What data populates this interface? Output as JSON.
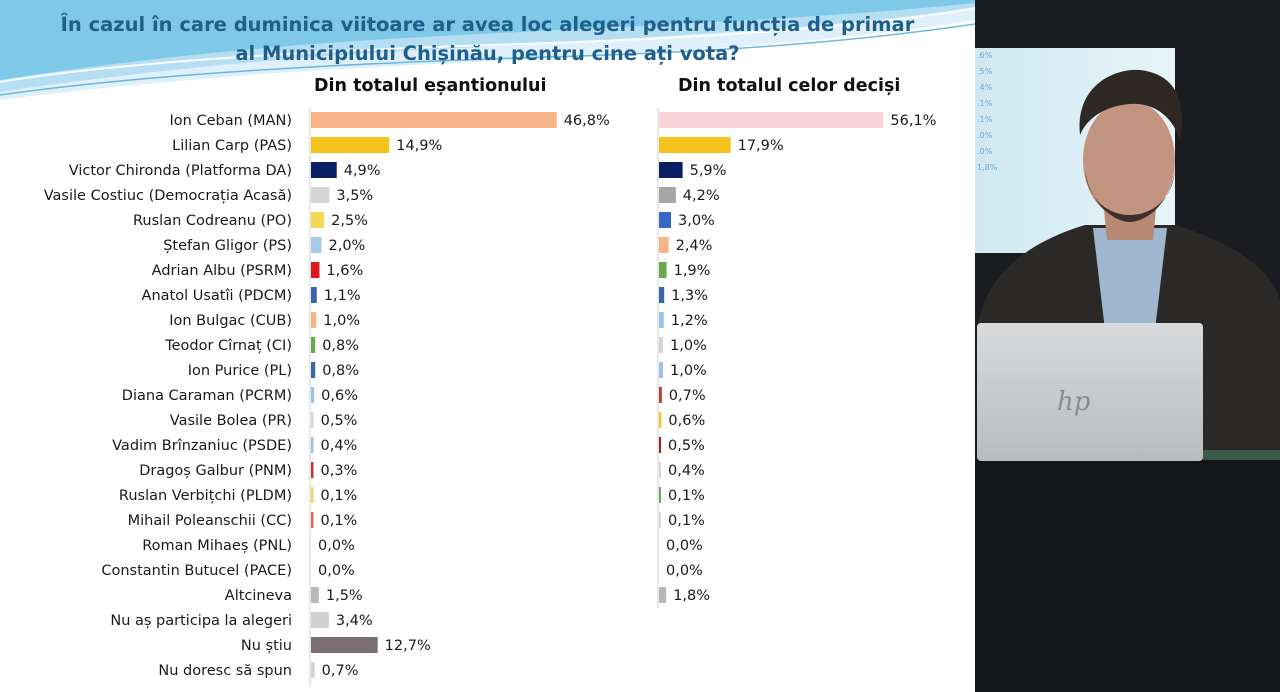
{
  "title": {
    "line1": "În cazul în care duminica viitoare ar avea loc alegeri pentru funcția de primar",
    "line2": "al Municipiului Chișinău, pentru cine ați vota?"
  },
  "chart_data": [
    {
      "type": "bar",
      "orientation": "horizontal",
      "title": "Din totalul eșantionului",
      "categories": [
        "Ion Ceban (MAN)",
        "Lilian Carp (PAS)",
        "Victor Chironda (Platforma DA)",
        "Vasile Costiuc (Democrația Acasă)",
        "Ruslan Codreanu (PO)",
        "Ștefan Gligor  (PS)",
        "Adrian Albu (PSRM)",
        "Anatol Usatîi (PDCM)",
        "Ion Bulgac (CUB)",
        "Teodor Cîrnaț (CI)",
        "Ion Purice (PL)",
        "Diana Caraman (PCRM)",
        "Vasile Bolea (PR)",
        "Vadim Brînzaniuc (PSDE)",
        "Dragoș Galbur (PNM)",
        "Ruslan Verbițchi (PLDM)",
        "Mihail Poleanschii (CC)",
        "Roman Mihaeș (PNL)",
        "Constantin Butucel  (PACE)",
        "Altcineva",
        "Nu aș participa la alegeri",
        "Nu știu",
        "Nu doresc să spun"
      ],
      "values": [
        46.8,
        14.9,
        4.9,
        3.5,
        2.5,
        2.0,
        1.6,
        1.1,
        1.0,
        0.8,
        0.8,
        0.6,
        0.5,
        0.4,
        0.3,
        0.1,
        0.1,
        0.0,
        0.0,
        1.5,
        3.4,
        12.7,
        0.7
      ],
      "labels": [
        "46,8%",
        "14,9%",
        "4,9%",
        "3,5%",
        "2,5%",
        "2,0%",
        "1,6%",
        "1,1%",
        "1,0%",
        "0,8%",
        "0,8%",
        "0,6%",
        "0,5%",
        "0,4%",
        "0,3%",
        "0,1%",
        "0,1%",
        "0,0%",
        "0,0%",
        "1,5%",
        "3,4%",
        "12,7%",
        "0,7%"
      ],
      "colors": [
        "#f7b486",
        "#f5c31b",
        "#0b1d63",
        "#d5d5d5",
        "#f6d859",
        "#a9c9ec",
        "#e0161b",
        "#3a66b0",
        "#f5b48a",
        "#6aa84f",
        "#3a66b0",
        "#9cc3e6",
        "#d8d8d8",
        "#9cc3e6",
        "#c0392b",
        "#f2d35b",
        "#e06666",
        "#dddddd",
        "#dddddd",
        "#b8b8b8",
        "#d2d2d2",
        "#7b6f72",
        "#d2d2d2"
      ],
      "unit": "%"
    },
    {
      "type": "bar",
      "orientation": "horizontal",
      "title": "Din totalul celor deciși",
      "values": [
        56.1,
        17.9,
        5.9,
        4.2,
        3.0,
        2.4,
        1.9,
        1.3,
        1.2,
        1.0,
        1.0,
        0.7,
        0.6,
        0.5,
        0.4,
        0.1,
        0.1,
        0.0,
        0.0,
        1.8
      ],
      "labels": [
        "56,1%",
        "17,9%",
        "5,9%",
        "4,2%",
        "3,0%",
        "2,4%",
        "1,9%",
        "1,3%",
        "1,2%",
        "1,0%",
        "1,0%",
        "0,7%",
        "0,6%",
        "0,5%",
        "0,4%",
        "0,1%",
        "0,1%",
        "0,0%",
        "0,0%",
        "1,8%"
      ],
      "colors": [
        "#fbd3d8",
        "#f5c31b",
        "#0b1d63",
        "#a6a6a6",
        "#3a66c4",
        "#f7b486",
        "#6aa84f",
        "#3a66b0",
        "#9cc3e6",
        "#d5d5d5",
        "#9cc3e6",
        "#c0392b",
        "#f5c31b",
        "#a61c1c",
        "#d8d8d8",
        "#6aa84f",
        "#d8d8d8",
        "#dddddd",
        "#dddddd",
        "#b8b8b8"
      ],
      "unit": "%"
    }
  ],
  "video": {
    "screen_values": [
      ".6%",
      ".5%",
      ".4%",
      ".1%",
      ".1%",
      ".0%",
      ".0%",
      "1,8%"
    ]
  }
}
